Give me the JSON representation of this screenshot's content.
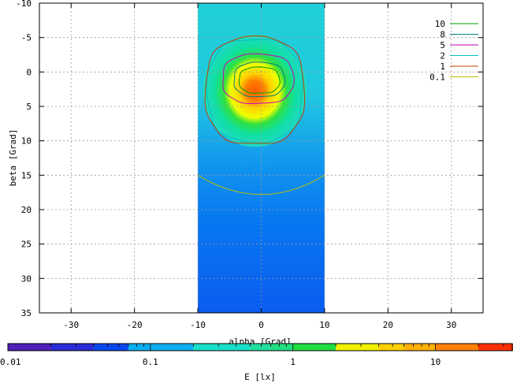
{
  "chart_data": {
    "type": "heatmap",
    "xlabel": "alpha [Grad]",
    "ylabel": "beta [Grad]",
    "xlim": [
      -35,
      35
    ],
    "ylim": [
      35,
      -10
    ],
    "y_axis_inverted": true,
    "x_ticks": [
      "-30",
      "-20",
      "-10",
      "0",
      "10",
      "20",
      "30"
    ],
    "y_ticks": [
      "-10",
      "-5",
      "0",
      "5",
      "10",
      "15",
      "20",
      "25",
      "30",
      "35"
    ],
    "x_tick_values": [
      -30,
      -20,
      -10,
      0,
      10,
      20,
      30
    ],
    "y_tick_values": [
      -10,
      -5,
      0,
      5,
      10,
      15,
      20,
      25,
      30,
      35
    ],
    "grid": true,
    "data_region": {
      "alpha_range": [
        -10,
        10
      ],
      "beta_range": [
        -10,
        35
      ]
    },
    "contours": [
      {
        "level": "10",
        "color": "#00a000",
        "center": [
          -0.3,
          1.2
        ],
        "half_width": 3.2,
        "half_height": 1.9
      },
      {
        "level": "8",
        "color": "#008080",
        "center": [
          -0.3,
          1.1
        ],
        "half_width": 4.0,
        "half_height": 2.5
      },
      {
        "level": "5",
        "color": "#c000c0",
        "center": [
          -0.5,
          1.0
        ],
        "half_width": 5.6,
        "half_height": 3.6
      },
      {
        "level": "2",
        "color": "#00c0c0",
        "center": [
          -1.0,
          2.7
        ],
        "half_width": 7.5,
        "half_height": 7.5
      },
      {
        "level": "1",
        "color": "#c04000",
        "center": [
          -1.0,
          2.7
        ],
        "half_width": 7.8,
        "half_height": 7.8
      },
      {
        "level": "0.1",
        "color": "#c0c000",
        "beta_at_center": 17.8,
        "beta_at_edges": 15.0
      }
    ],
    "legend_position": "top-right",
    "colorbar": {
      "label": "E [lx]",
      "scale": "log",
      "ticks": [
        "0.01",
        "0.1",
        "1",
        "10"
      ],
      "tick_values": [
        0.01,
        0.1,
        1,
        10
      ],
      "range": [
        0.01,
        35
      ]
    }
  }
}
